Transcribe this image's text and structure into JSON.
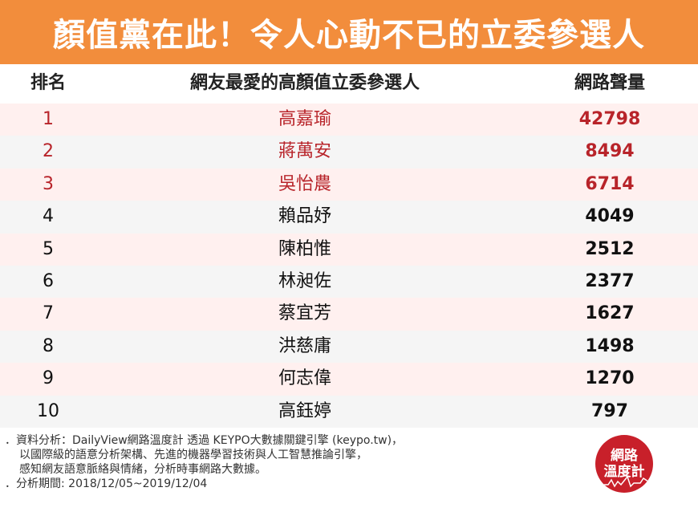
{
  "title": "顏值黨在此！令人心動不已的立委參選人",
  "columns": {
    "rank": "排名",
    "name": "網友最愛的高顏值立委參選人",
    "volume": "網路聲量"
  },
  "rows": [
    {
      "rank": "1",
      "name": "高嘉瑜",
      "volume": "42798"
    },
    {
      "rank": "2",
      "name": "蔣萬安",
      "volume": "8494"
    },
    {
      "rank": "3",
      "name": "吳怡農",
      "volume": "6714"
    },
    {
      "rank": "4",
      "name": "賴品妤",
      "volume": "4049"
    },
    {
      "rank": "5",
      "name": "陳柏惟",
      "volume": "2512"
    },
    {
      "rank": "6",
      "name": "林昶佐",
      "volume": "2377"
    },
    {
      "rank": "7",
      "name": "蔡宜芳",
      "volume": "1627"
    },
    {
      "rank": "8",
      "name": "洪慈庸",
      "volume": "1498"
    },
    {
      "rank": "9",
      "name": "何志偉",
      "volume": "1270"
    },
    {
      "rank": "10",
      "name": "高鈺婷",
      "volume": "797"
    }
  ],
  "footnote": {
    "line1": "．資料分析：DailyView網路溫度計 透過 KEYPO大數據關鍵引擎 (keypo.tw)，",
    "line2": "以國際級的語意分析架構、先進的機器學習技術與人工智慧推論引擎，",
    "line3": "感知網友語意脈絡與情緒，分析時事網路大數據。",
    "line4": "．分析期間: 2018/12/05~2019/12/04"
  },
  "logo": {
    "line1": "網路",
    "line2": "溫度計"
  },
  "colors": {
    "banner": "#f28d3c",
    "highlight": "#b8242a",
    "logo": "#c8202a"
  }
}
